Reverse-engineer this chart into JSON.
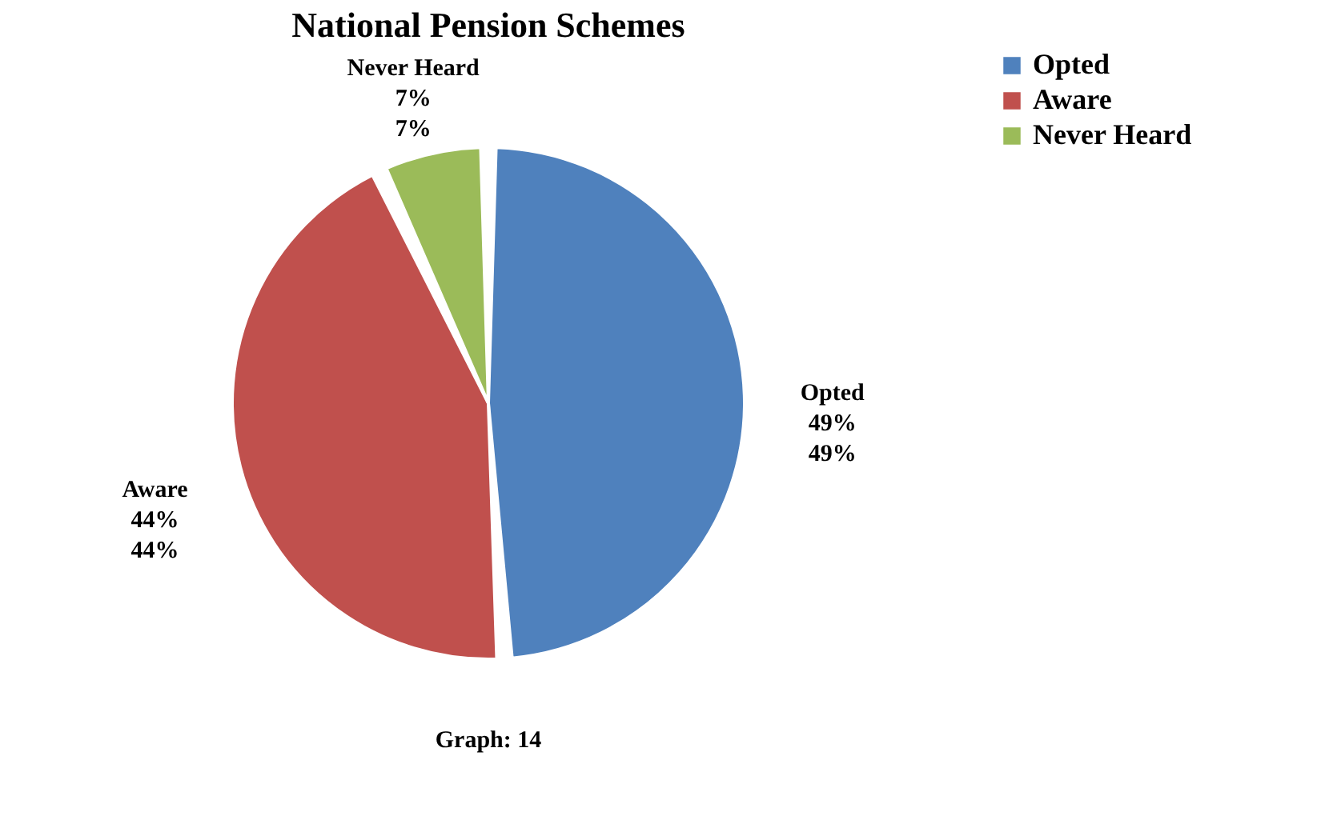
{
  "chart_data": {
    "type": "pie",
    "title": "National Pension Schemes",
    "categories": [
      "Opted",
      "Aware",
      "Never Heard"
    ],
    "values": [
      49,
      44,
      7
    ],
    "colors": [
      "#4f81bd",
      "#c0504d",
      "#9bbb59"
    ],
    "value_labels": [
      "49%",
      "44%",
      "7%"
    ],
    "legend": "right",
    "annotations": [
      "Graph: 14"
    ]
  }
}
